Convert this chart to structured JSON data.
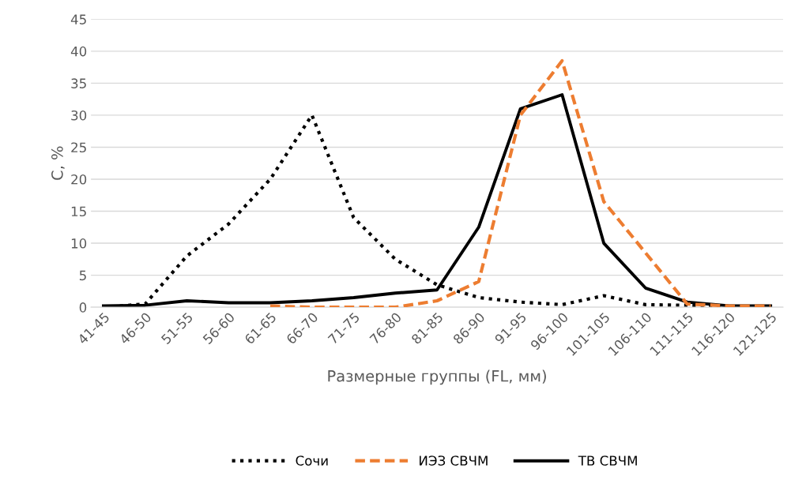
{
  "chart_data": {
    "type": "line",
    "xlabel": "Размерные группы (FL, мм)",
    "ylabel": "C, %",
    "categories": [
      "41-45",
      "46-50",
      "51-55",
      "56-60",
      "61-65",
      "66-70",
      "71-75",
      "76-80",
      "81-85",
      "86-90",
      "91-95",
      "96-100",
      "101-105",
      "106-110",
      "111-115",
      "116-120",
      "121-125"
    ],
    "series": [
      {
        "name": "Сочи",
        "color": "#000000",
        "line_style": "dotted",
        "values": [
          0,
          0.5,
          8,
          13,
          20,
          30,
          14,
          7.5,
          3.5,
          1.5,
          0.8,
          0.4,
          1.8,
          0.4,
          0.3,
          0.1,
          0
        ]
      },
      {
        "name": "ИЭЗ СВЧМ",
        "color": "#ed7d31",
        "line_style": "dashed",
        "values": [
          null,
          null,
          null,
          null,
          0.2,
          0,
          0,
          0,
          1,
          4,
          30,
          38.5,
          16.5,
          8.5,
          0.5,
          0.2,
          0.2
        ]
      },
      {
        "name": "ТВ СВЧМ",
        "color": "#000000",
        "line_style": "solid",
        "values": [
          0.2,
          0.3,
          1,
          0.7,
          0.7,
          1,
          1.5,
          2.2,
          2.7,
          12.5,
          31,
          33.2,
          10,
          3,
          0.8,
          0.2,
          0.2
        ]
      }
    ],
    "ylim": [
      0,
      45
    ],
    "yticks": [
      0,
      5,
      10,
      15,
      20,
      25,
      30,
      35,
      40,
      45
    ],
    "grid": "y",
    "legend": "bottom"
  }
}
